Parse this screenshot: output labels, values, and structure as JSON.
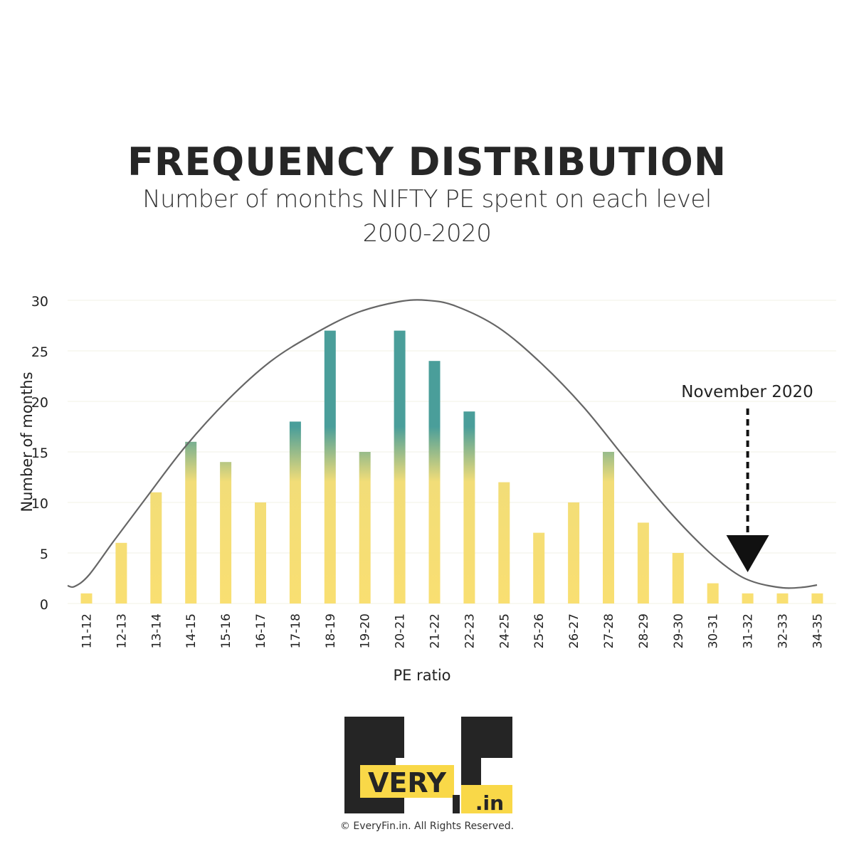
{
  "header": {
    "title": "FREQUENCY DISTRIBUTION",
    "subtitle_line1": "Number of months NIFTY PE spent on each level",
    "subtitle_line2": "2000-2020"
  },
  "chart_data": {
    "type": "bar",
    "title": "FREQUENCY DISTRIBUTION",
    "subtitle": "Number of months NIFTY PE spent on each level 2000-2020",
    "xlabel": "PE ratio",
    "ylabel": "Number of months",
    "ylim": [
      0,
      30
    ],
    "yticks": [
      0,
      5,
      10,
      15,
      20,
      25,
      30
    ],
    "grid": true,
    "categories": [
      "11-12",
      "12-13",
      "13-14",
      "14-15",
      "15-16",
      "16-17",
      "17-18",
      "18-19",
      "19-20",
      "20-21",
      "21-22",
      "22-23",
      "24-25",
      "25-26",
      "26-27",
      "27-28",
      "28-29",
      "29-30",
      "30-31",
      "31-32",
      "32-33",
      "34-35"
    ],
    "values": [
      1,
      6,
      11,
      16,
      14,
      10,
      18,
      27,
      15,
      27,
      24,
      19,
      12,
      7,
      10,
      15,
      8,
      5,
      2,
      1,
      1,
      1
    ],
    "annotation": {
      "text": "November 2020",
      "category": "31-32"
    },
    "colors": {
      "bar_low": "#f9df72",
      "bar_high": "#4a9e9a",
      "curve": "#666666",
      "arrow": "#111111"
    }
  },
  "logo": {
    "letters_top": "E",
    "letters_f": "F",
    "very": "VERY",
    "dot_in": ".in",
    "colors": {
      "dark": "#252525",
      "accent": "#f9d848"
    }
  },
  "footer": {
    "copyright": "© EveryFin.in. All Rights Reserved."
  }
}
